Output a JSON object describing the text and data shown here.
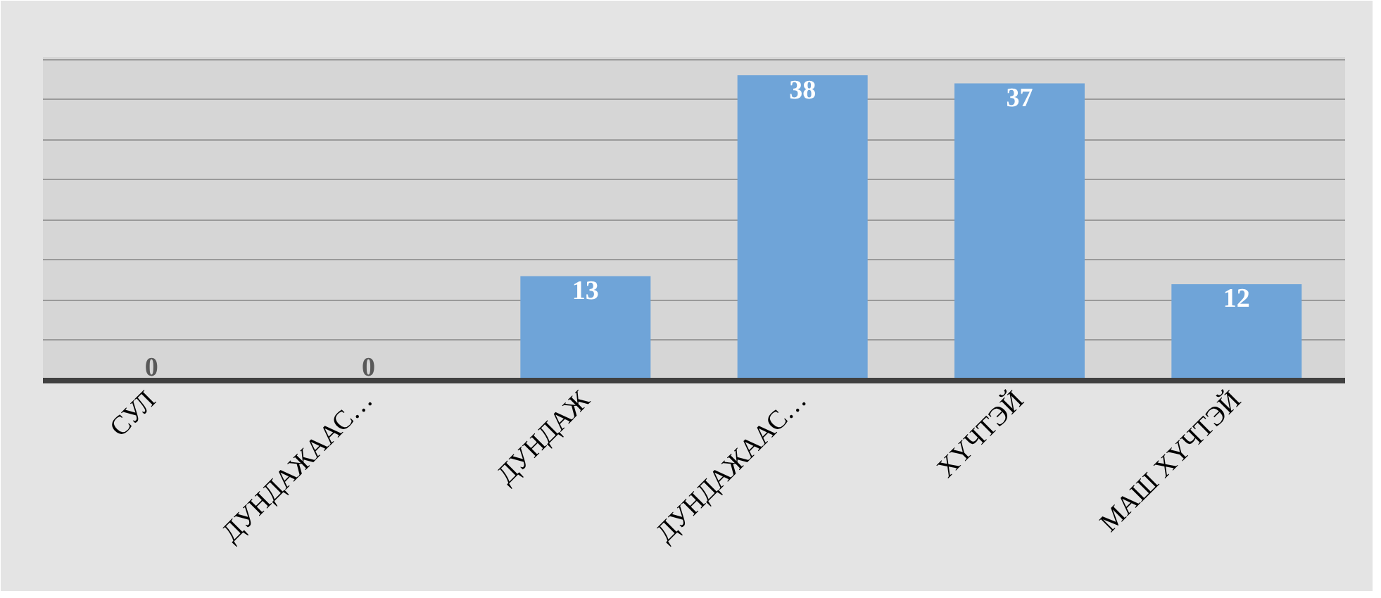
{
  "chart_data": {
    "type": "bar",
    "categories": [
      "СУЛ",
      "ДУНДАЖААС…",
      "ДУНДАЖ",
      "ДУНДАЖААС…",
      "ХҮЧТЭЙ",
      "МАШ ХҮЧТЭЙ"
    ],
    "values": [
      0,
      0,
      13,
      38,
      37,
      12
    ],
    "color": "#6fa4d8",
    "data_labels": true,
    "grid": "y",
    "tick_labels": "x"
  }
}
